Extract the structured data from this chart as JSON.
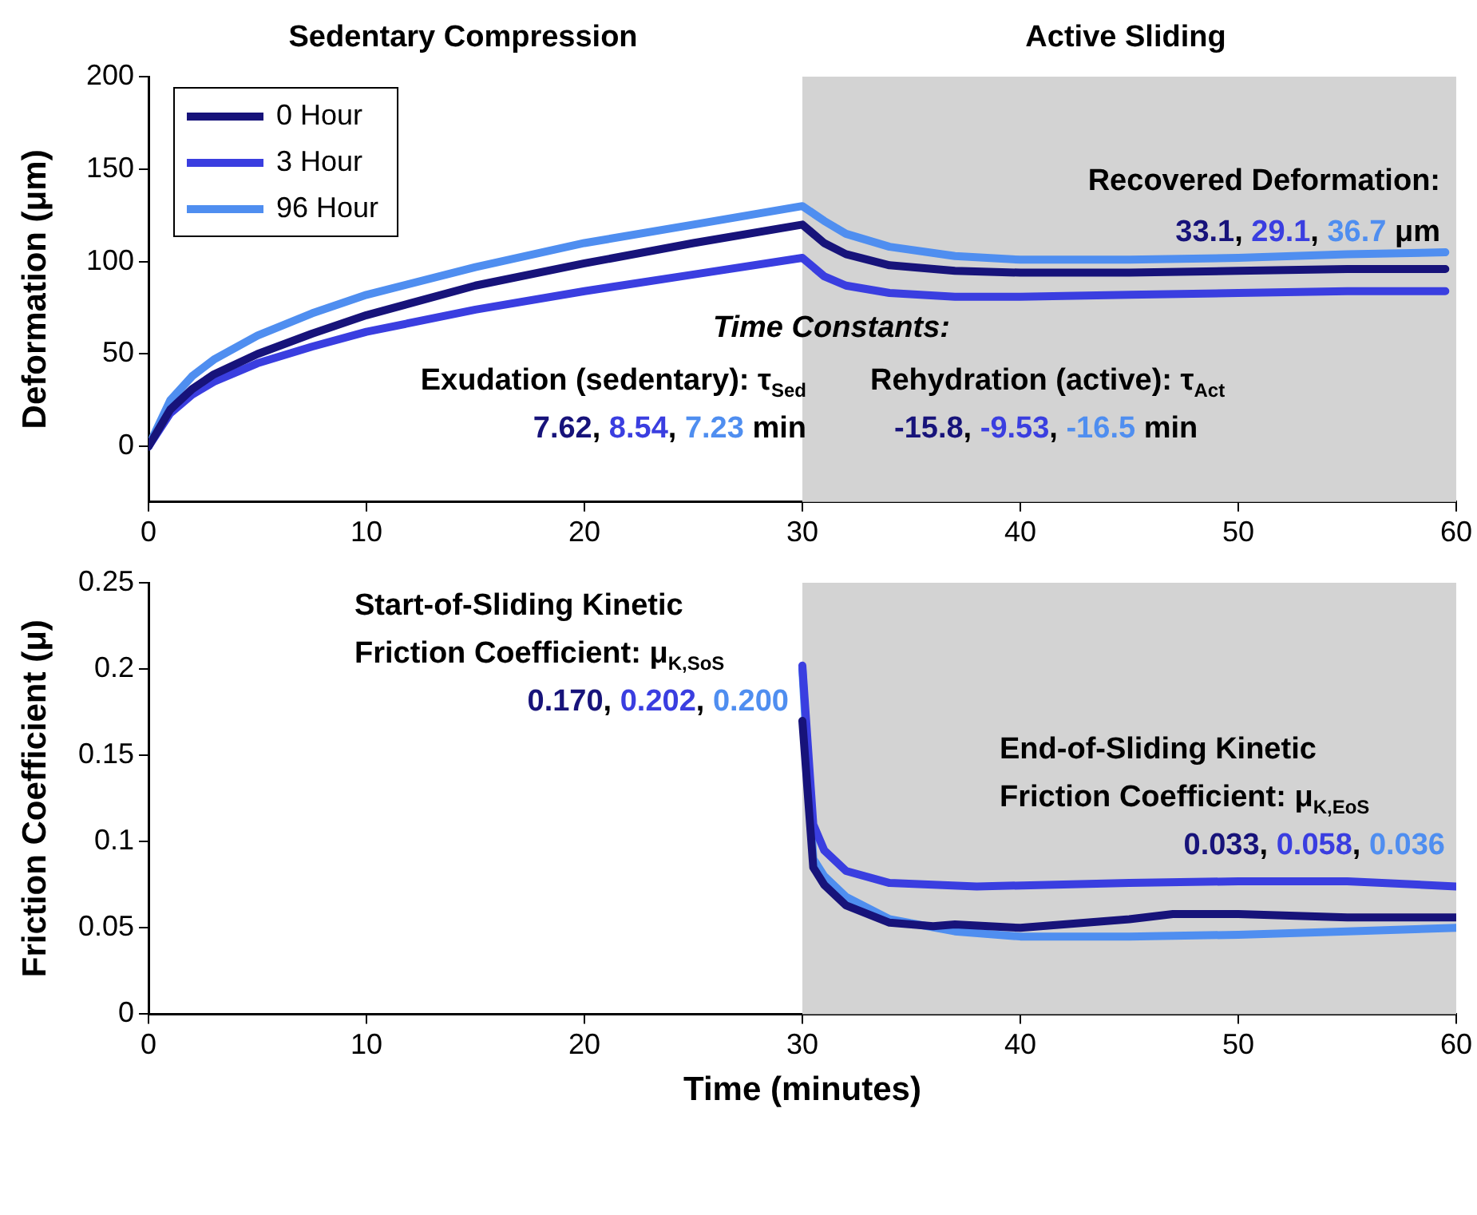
{
  "chart_data": [
    {
      "type": "line",
      "ylabel": "Deformation (μm)",
      "xlim": [
        0,
        60
      ],
      "xticks": [
        0,
        10,
        20,
        30,
        40,
        50,
        60
      ],
      "ylim": [
        -30,
        200
      ],
      "yticks": [
        0,
        50,
        100,
        150,
        200
      ],
      "grid": false,
      "legend": "top left",
      "bands": [
        {
          "axis": "x",
          "from": 30,
          "to": 60,
          "color": "#d3d3d3"
        }
      ],
      "annotations": [
        "Sedentary Compression",
        "Active Sliding",
        "Recovered Deformation:",
        "33.1, 29.1, 36.7 μm",
        "Time Constants:",
        "Exudation (sedentary): τ$_{Sed}$",
        "7.62, 8.54, 7.23 min",
        "Rehydration (active): τ$_{Act}$",
        "-15.8, -9.53, -16.5 min"
      ],
      "series": [
        {
          "name": "0 Hour",
          "color": "#17137a",
          "x": [
            0,
            1,
            2,
            3,
            5,
            7.5,
            10,
            15,
            20,
            25,
            30,
            31,
            32,
            34,
            37,
            40,
            45,
            50,
            55,
            59.5
          ],
          "values": [
            0,
            20,
            31,
            39,
            50,
            61,
            71,
            87,
            99,
            110,
            120,
            110,
            104,
            98,
            95,
            94,
            94,
            95,
            96,
            96
          ]
        },
        {
          "name": "3 Hour",
          "color": "#3a3ee0",
          "x": [
            0,
            1,
            2,
            3,
            5,
            7.5,
            10,
            15,
            20,
            25,
            30,
            31,
            32,
            34,
            37,
            40,
            45,
            50,
            55,
            59.5
          ],
          "values": [
            0,
            18,
            28,
            35,
            45,
            54,
            62,
            74,
            84,
            93,
            102,
            92,
            87,
            83,
            81,
            81,
            82,
            83,
            84,
            84
          ]
        },
        {
          "name": "96 Hour",
          "color": "#4f8ef0",
          "x": [
            0,
            1,
            2,
            3,
            5,
            7.5,
            10,
            15,
            20,
            25,
            30,
            31,
            32,
            34,
            37,
            40,
            45,
            50,
            55,
            59.5
          ],
          "values": [
            0,
            25,
            38,
            47,
            60,
            72,
            82,
            97,
            110,
            120,
            130,
            122,
            115,
            108,
            103,
            101,
            101,
            102,
            104,
            105
          ]
        }
      ]
    },
    {
      "type": "line",
      "xlabel": "Time (minutes)",
      "ylabel": "Friction Coefficient (μ)",
      "xlim": [
        0,
        60
      ],
      "xticks": [
        0,
        10,
        20,
        30,
        40,
        50,
        60
      ],
      "ylim": [
        0,
        0.25
      ],
      "yticks": [
        0,
        0.05,
        0.1,
        0.15,
        0.2,
        0.25
      ],
      "grid": false,
      "bands": [
        {
          "axis": "x",
          "from": 30,
          "to": 60,
          "color": "#d3d3d3"
        }
      ],
      "annotations": [
        "Start-of-Sliding Kinetic",
        "Friction Coefficient: μ$_{K,SoS}$",
        "0.170, 0.202, 0.200",
        "End-of-Sliding Kinetic",
        "Friction Coefficient: μ$_{K,EoS}$",
        "0.033, 0.058, 0.036"
      ],
      "series": [
        {
          "color": "#17137a",
          "x": [
            30,
            30.5,
            31,
            32,
            34,
            36,
            37,
            40,
            45,
            47,
            50,
            55,
            60
          ],
          "values": [
            0.17,
            0.085,
            0.075,
            0.063,
            0.053,
            0.051,
            0.052,
            0.05,
            0.055,
            0.058,
            0.058,
            0.056,
            0.056
          ]
        },
        {
          "color": "#3a3ee0",
          "x": [
            30,
            30.5,
            31,
            32,
            34,
            38,
            45,
            50,
            55,
            60
          ],
          "values": [
            0.202,
            0.11,
            0.095,
            0.083,
            0.076,
            0.074,
            0.076,
            0.077,
            0.077,
            0.074
          ]
        },
        {
          "color": "#4f8ef0",
          "x": [
            30,
            30.5,
            31,
            32,
            34,
            37,
            40,
            45,
            50,
            55,
            60
          ],
          "values": [
            0.2,
            0.09,
            0.08,
            0.068,
            0.055,
            0.048,
            0.045,
            0.045,
            0.046,
            0.048,
            0.05
          ]
        }
      ]
    }
  ]
}
